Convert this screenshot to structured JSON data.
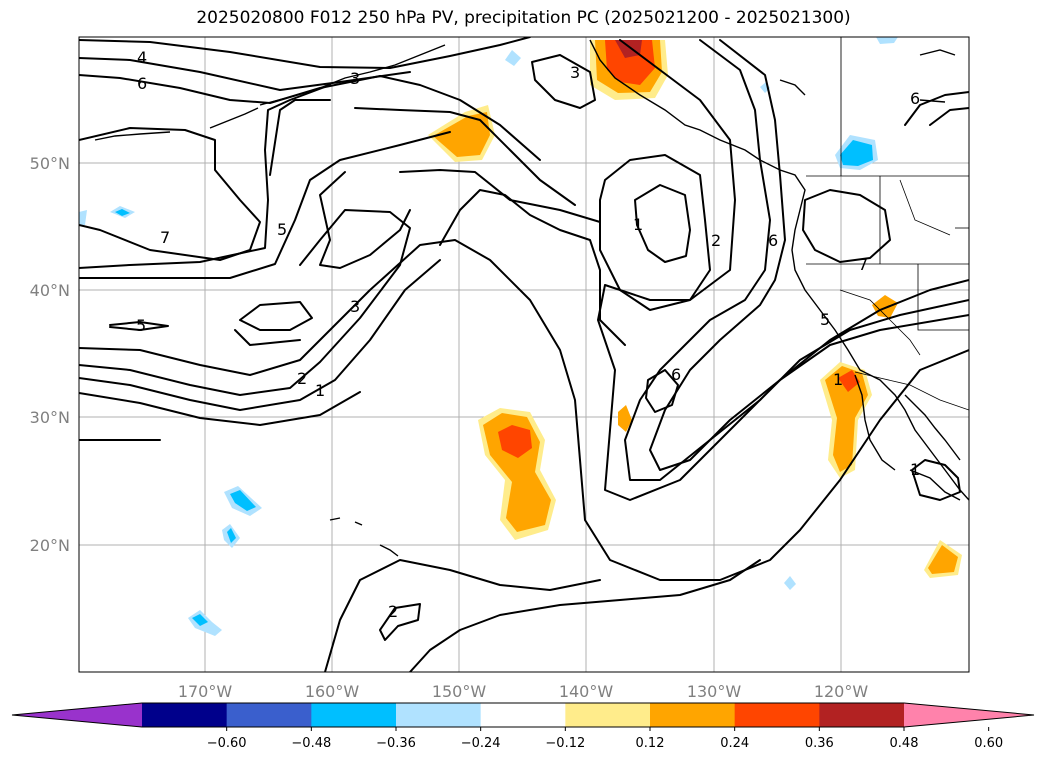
{
  "title": "2025020800 F012 250 hPa PV, precipitation PC (2025021200 - 2025021300)",
  "map": {
    "lon_ticks": [
      "170°W",
      "160°W",
      "150°W",
      "140°W",
      "130°W",
      "120°W"
    ],
    "lat_ticks": [
      "50°N",
      "40°N",
      "30°N",
      "20°N"
    ]
  },
  "colorbar": {
    "colors": [
      "#9932cc",
      "#00008b",
      "#3a5fcd",
      "#00bfff",
      "#b0e2ff",
      "#ffffff",
      "#ffec8b",
      "#ffa500",
      "#ff4500",
      "#b22222",
      "#ff82ab"
    ],
    "tick_labels": [
      "−0.60",
      "−0.48",
      "−0.36",
      "−0.24",
      "−0.12",
      "0.12",
      "0.24",
      "0.36",
      "0.48",
      "0.60"
    ]
  },
  "contour_labels": [
    "4",
    "6",
    "3",
    "7",
    "5",
    "5",
    "3",
    "2",
    "1",
    "3",
    "1",
    "2",
    "6",
    "6",
    "7",
    "5",
    "1",
    "1",
    "2",
    "6"
  ],
  "colors": {
    "ocean": "#ffffff",
    "gridline": "#b0b0b0",
    "tick_text": "#808080"
  }
}
